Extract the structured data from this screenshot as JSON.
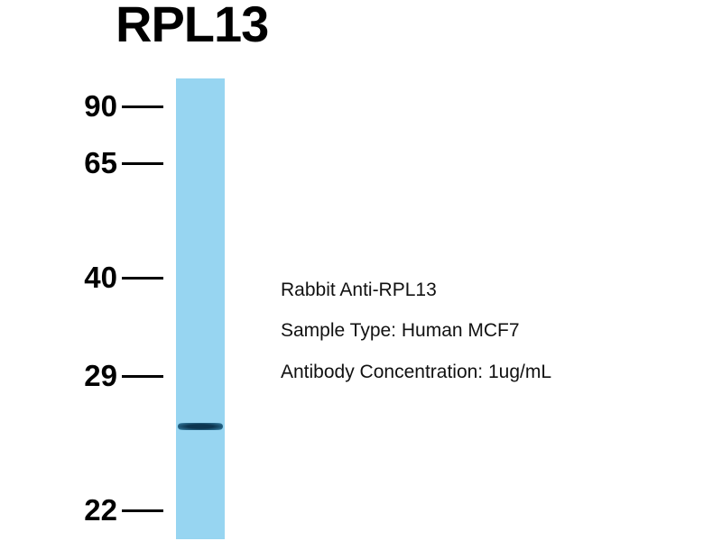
{
  "title": "RPL13",
  "lane_color": "#97d5f1",
  "band_color": "#0c3550",
  "markers": [
    {
      "label": "90"
    },
    {
      "label": "65"
    },
    {
      "label": "40"
    },
    {
      "label": "29"
    },
    {
      "label": "22"
    }
  ],
  "info": {
    "antibody": "Rabbit Anti-RPL13",
    "sample": "Sample Type: Human MCF7",
    "concentration": "Antibody Concentration: 1ug/mL"
  }
}
